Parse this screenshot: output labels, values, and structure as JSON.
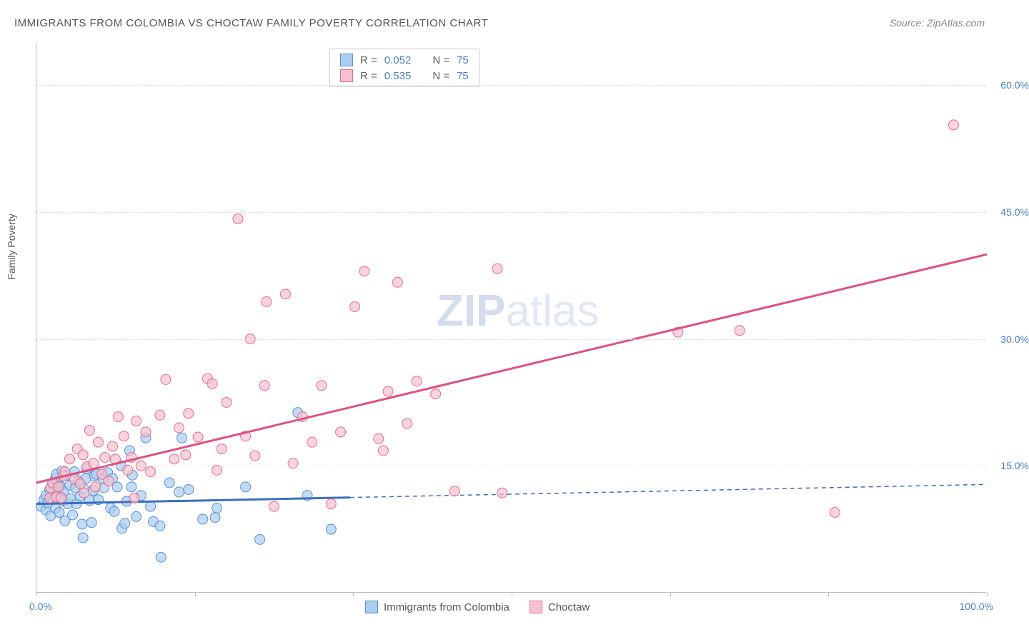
{
  "title": "IMMIGRANTS FROM COLOMBIA VS CHOCTAW FAMILY POVERTY CORRELATION CHART",
  "source": "Source: ZipAtlas.com",
  "yaxis_title": "Family Poverty",
  "watermark_bold": "ZIP",
  "watermark_rest": "atlas",
  "chart": {
    "type": "scatter",
    "xlim": [
      0,
      100
    ],
    "ylim": [
      0,
      65
    ],
    "ytick_values": [
      15.0,
      30.0,
      45.0,
      60.0
    ],
    "ytick_labels": [
      "15.0%",
      "30.0%",
      "45.0%",
      "60.0%"
    ],
    "xtick_values": [
      0,
      16.67,
      33.33,
      50.0,
      66.67,
      83.33,
      100.0
    ],
    "xlabel_0": "0.0%",
    "xlabel_100": "100.0%",
    "grid_color": "#e0e0e0",
    "axis_color": "#bbbbbb",
    "background_color": "#ffffff",
    "tick_label_color": "#4a7fc4",
    "tick_label_fontsize": 14,
    "title_fontsize": 15,
    "title_color": "#555555",
    "series": [
      {
        "name": "Immigrants from Colombia",
        "marker_fill": "#a9cdf0",
        "marker_stroke": "#5b8fd8",
        "marker_opacity": 0.7,
        "marker_radius": 7,
        "line_color": "#3a6fc0",
        "line_width": 3,
        "line_solid_max_x": 33,
        "dash_pattern": "6 5",
        "trend": {
          "x0": 0,
          "y0": 10.5,
          "x1": 100,
          "y1": 12.8
        },
        "R": "0.052",
        "N": "75",
        "points": [
          [
            0.5,
            10.2
          ],
          [
            0.8,
            11.0
          ],
          [
            1.0,
            9.8
          ],
          [
            1.0,
            11.5
          ],
          [
            1.2,
            10.6
          ],
          [
            1.4,
            12.2
          ],
          [
            1.5,
            9.1
          ],
          [
            1.7,
            12.8
          ],
          [
            1.8,
            11.0
          ],
          [
            2.0,
            13.5
          ],
          [
            2.0,
            10.0
          ],
          [
            2.1,
            14.0
          ],
          [
            2.2,
            11.7
          ],
          [
            2.3,
            13.0
          ],
          [
            2.4,
            9.5
          ],
          [
            2.5,
            12.6
          ],
          [
            2.6,
            11.3
          ],
          [
            2.7,
            14.4
          ],
          [
            2.8,
            10.9
          ],
          [
            2.9,
            12.0
          ],
          [
            3.0,
            8.5
          ],
          [
            3.2,
            13.9
          ],
          [
            3.3,
            10.5
          ],
          [
            3.5,
            12.7
          ],
          [
            3.6,
            11.1
          ],
          [
            3.8,
            9.2
          ],
          [
            4.0,
            14.3
          ],
          [
            4.1,
            12.4
          ],
          [
            4.2,
            10.5
          ],
          [
            4.4,
            13.2
          ],
          [
            4.6,
            11.4
          ],
          [
            4.8,
            8.1
          ],
          [
            4.9,
            6.5
          ],
          [
            5.0,
            12.3
          ],
          [
            5.2,
            13.5
          ],
          [
            5.3,
            14.7
          ],
          [
            5.6,
            10.9
          ],
          [
            5.8,
            8.3
          ],
          [
            6.0,
            12.1
          ],
          [
            6.1,
            13.8
          ],
          [
            6.3,
            14.0
          ],
          [
            6.5,
            11.0
          ],
          [
            7.0,
            13.5
          ],
          [
            7.1,
            12.4
          ],
          [
            7.5,
            14.2
          ],
          [
            7.8,
            10.0
          ],
          [
            8.0,
            13.5
          ],
          [
            8.2,
            9.6
          ],
          [
            8.5,
            12.5
          ],
          [
            8.9,
            15.0
          ],
          [
            9.0,
            7.6
          ],
          [
            9.3,
            8.2
          ],
          [
            9.5,
            10.8
          ],
          [
            9.8,
            16.8
          ],
          [
            10.0,
            12.5
          ],
          [
            10.1,
            13.9
          ],
          [
            10.5,
            9.0
          ],
          [
            11.0,
            11.5
          ],
          [
            11.5,
            18.3
          ],
          [
            12.0,
            10.2
          ],
          [
            12.3,
            8.4
          ],
          [
            13.0,
            7.9
          ],
          [
            13.1,
            4.2
          ],
          [
            14.0,
            13.0
          ],
          [
            15.0,
            11.9
          ],
          [
            15.3,
            18.3
          ],
          [
            16.0,
            12.2
          ],
          [
            17.5,
            8.7
          ],
          [
            18.8,
            8.9
          ],
          [
            19.0,
            10.0
          ],
          [
            22.0,
            12.5
          ],
          [
            23.5,
            6.3
          ],
          [
            27.5,
            21.3
          ],
          [
            28.5,
            11.5
          ],
          [
            31.0,
            7.5
          ]
        ]
      },
      {
        "name": "Choctaw",
        "marker_fill": "#f6c1cf",
        "marker_stroke": "#e76b8f",
        "marker_opacity": 0.7,
        "marker_radius": 7,
        "line_color": "#e05080",
        "line_width": 3,
        "line_solid_max_x": 100,
        "dash_pattern": "",
        "trend": {
          "x0": 0,
          "y0": 13.0,
          "x1": 100,
          "y1": 40.0
        },
        "R": "0.535",
        "N": "75",
        "points": [
          [
            1.4,
            11.2
          ],
          [
            1.5,
            12.4
          ],
          [
            1.7,
            13.0
          ],
          [
            2.1,
            11.3
          ],
          [
            2.3,
            12.5
          ],
          [
            2.6,
            11.2
          ],
          [
            2.8,
            13.8
          ],
          [
            3.0,
            14.3
          ],
          [
            3.5,
            15.8
          ],
          [
            4.0,
            13.4
          ],
          [
            4.3,
            17.0
          ],
          [
            4.6,
            12.9
          ],
          [
            4.9,
            16.3
          ],
          [
            5.0,
            11.8
          ],
          [
            5.3,
            14.9
          ],
          [
            5.6,
            19.2
          ],
          [
            6.0,
            15.3
          ],
          [
            6.2,
            12.5
          ],
          [
            6.5,
            17.8
          ],
          [
            6.9,
            14.0
          ],
          [
            7.2,
            16.0
          ],
          [
            7.6,
            13.2
          ],
          [
            8.0,
            17.3
          ],
          [
            8.3,
            15.8
          ],
          [
            8.6,
            20.8
          ],
          [
            9.2,
            18.5
          ],
          [
            9.6,
            14.5
          ],
          [
            10.0,
            16.0
          ],
          [
            10.3,
            11.2
          ],
          [
            10.5,
            20.3
          ],
          [
            11.0,
            15.0
          ],
          [
            11.5,
            19.0
          ],
          [
            12.0,
            14.3
          ],
          [
            13.0,
            21.0
          ],
          [
            13.6,
            25.2
          ],
          [
            14.5,
            15.8
          ],
          [
            15.0,
            19.5
          ],
          [
            15.7,
            16.3
          ],
          [
            16.0,
            21.2
          ],
          [
            17.0,
            18.4
          ],
          [
            18.0,
            25.3
          ],
          [
            18.5,
            24.7
          ],
          [
            19.0,
            14.5
          ],
          [
            19.5,
            17.0
          ],
          [
            20.0,
            22.5
          ],
          [
            21.2,
            44.2
          ],
          [
            22.0,
            18.5
          ],
          [
            22.5,
            30.0
          ],
          [
            23.0,
            16.2
          ],
          [
            24.0,
            24.5
          ],
          [
            24.2,
            34.4
          ],
          [
            25.0,
            10.2
          ],
          [
            26.2,
            35.3
          ],
          [
            27.0,
            15.3
          ],
          [
            28.0,
            20.8
          ],
          [
            29.0,
            17.8
          ],
          [
            30.0,
            24.5
          ],
          [
            31.0,
            10.5
          ],
          [
            32.0,
            19.0
          ],
          [
            33.5,
            33.8
          ],
          [
            34.5,
            38.0
          ],
          [
            36.0,
            18.2
          ],
          [
            36.5,
            16.8
          ],
          [
            37.0,
            23.8
          ],
          [
            38.0,
            36.7
          ],
          [
            39.0,
            20.0
          ],
          [
            40.0,
            25.0
          ],
          [
            42.0,
            23.5
          ],
          [
            44.0,
            12.0
          ],
          [
            48.5,
            38.3
          ],
          [
            49.0,
            11.8
          ],
          [
            67.5,
            30.8
          ],
          [
            74.0,
            31.0
          ],
          [
            84.0,
            9.5
          ],
          [
            96.5,
            55.3
          ]
        ]
      }
    ],
    "legend_top": {
      "R_label": "R =",
      "N_label": "N ="
    },
    "legend_bottom": [
      {
        "label": "Immigrants from Colombia",
        "fill": "#a9cdf0",
        "stroke": "#5b8fd8"
      },
      {
        "label": "Choctaw",
        "fill": "#f6c1cf",
        "stroke": "#e76b8f"
      }
    ]
  }
}
